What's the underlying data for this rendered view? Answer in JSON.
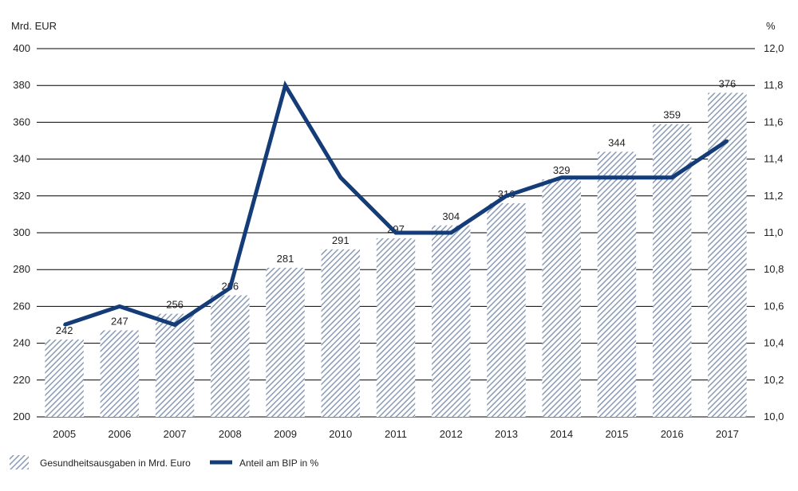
{
  "chart_data": {
    "type": "bar",
    "left_unit": "Mrd. EUR",
    "right_unit": "%",
    "categories": [
      "2005",
      "2006",
      "2007",
      "2008",
      "2009",
      "2010",
      "2011",
      "2012",
      "2013",
      "2014",
      "2015",
      "2016",
      "2017"
    ],
    "series": [
      {
        "name": "Gesundheitsausgaben in Mrd. Euro",
        "type": "bar",
        "axis": "left",
        "values": [
          242,
          247,
          256,
          266,
          281,
          291,
          297,
          304,
          316,
          329,
          344,
          359,
          376
        ]
      },
      {
        "name": "Anteil am BIP in %",
        "type": "line",
        "axis": "right",
        "values": [
          10.5,
          10.6,
          10.5,
          10.7,
          11.8,
          11.3,
          11.0,
          11.0,
          11.2,
          11.3,
          11.3,
          11.3,
          11.5
        ]
      }
    ],
    "ylim_left": [
      200,
      400
    ],
    "yticks_left": [
      "200",
      "220",
      "240",
      "260",
      "280",
      "300",
      "320",
      "340",
      "360",
      "380",
      "400"
    ],
    "ylim_right": [
      10.0,
      12.0
    ],
    "yticks_right": [
      "10,0",
      "10,2",
      "10,4",
      "10,6",
      "10,8",
      "11,0",
      "11,2",
      "11,4",
      "11,6",
      "11,8",
      "12,0"
    ],
    "grid": true,
    "legend_position": "bottom-left",
    "colors": {
      "bar_hatch": "#8a9bb5",
      "line": "#143c78",
      "grid": "#000000"
    }
  }
}
